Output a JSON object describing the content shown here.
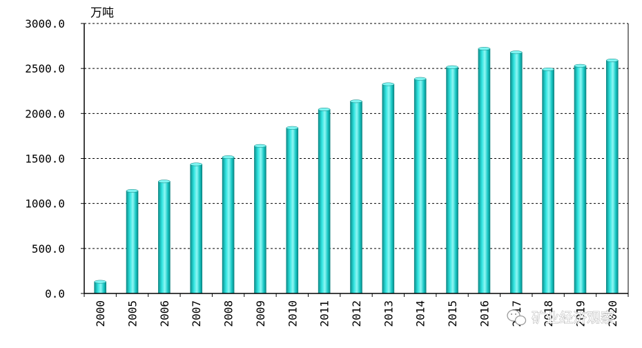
{
  "chart_data": {
    "type": "bar",
    "ylabel": "万吨",
    "ylim": [
      0,
      3000
    ],
    "yticks": [
      "0.0",
      "500.0",
      "1000.0",
      "1500.0",
      "2000.0",
      "2500.0",
      "3000.0"
    ],
    "grid": true,
    "categories": [
      "2000",
      "2005",
      "2006",
      "2007",
      "2008",
      "2009",
      "2010",
      "2011",
      "2012",
      "2013",
      "2014",
      "2015",
      "2016",
      "2017",
      "2018",
      "2019",
      "2020"
    ],
    "values": [
      130,
      1140,
      1245,
      1435,
      1515,
      1640,
      1840,
      2045,
      2135,
      2325,
      2385,
      2515,
      2720,
      2680,
      2490,
      2530,
      2590
    ],
    "bar_color": "#17c7c4"
  },
  "watermark": {
    "text": "矿业经济观察",
    "icon": "wechat-icon"
  }
}
